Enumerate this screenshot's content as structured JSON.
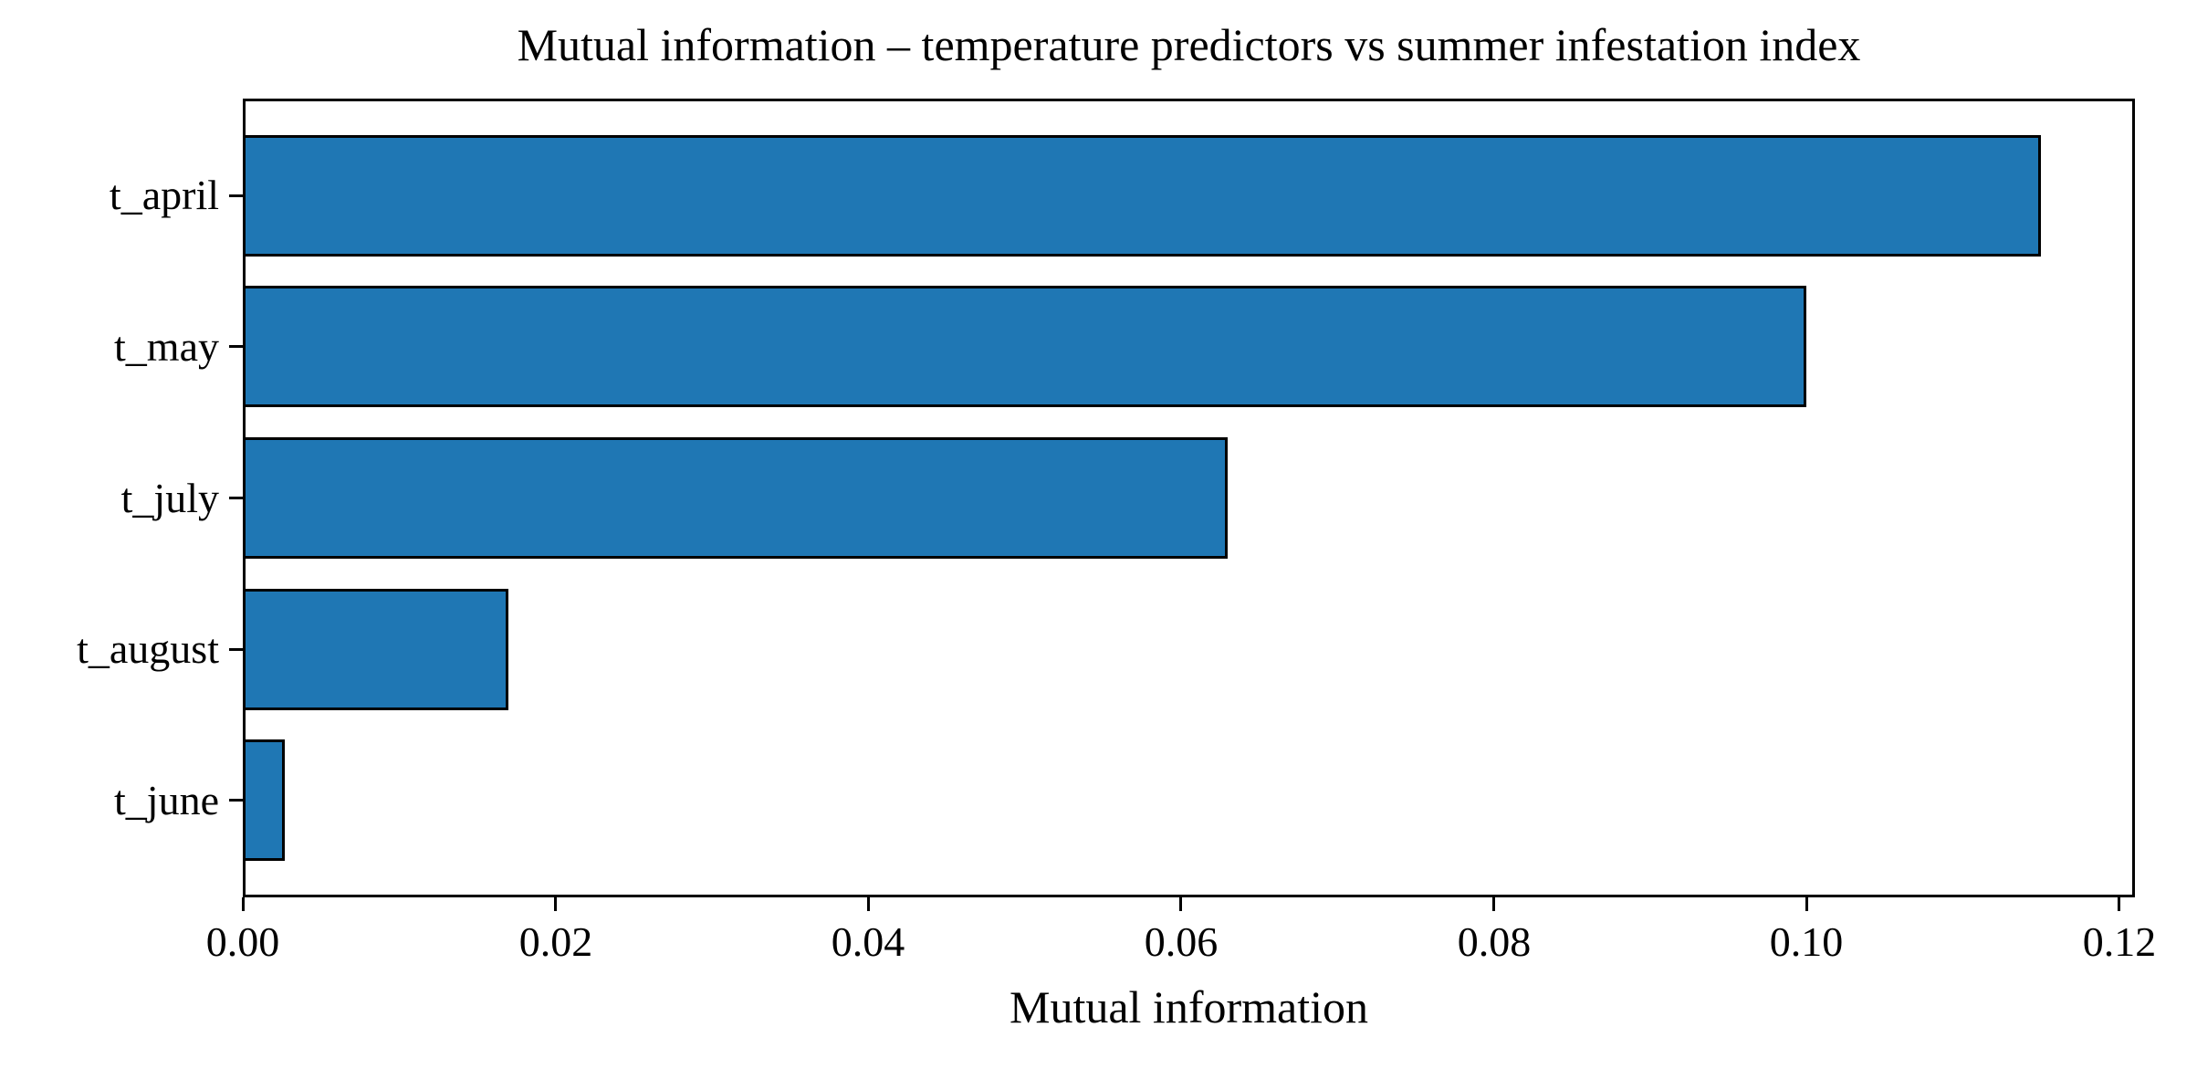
{
  "chart_data": {
    "type": "bar",
    "orientation": "horizontal",
    "title": "Mutual information – temperature predictors vs summer infestation index",
    "xlabel": "Mutual information",
    "ylabel": "",
    "categories": [
      "t_april",
      "t_may",
      "t_july",
      "t_august",
      "t_june"
    ],
    "values": [
      0.115,
      0.1,
      0.063,
      0.017,
      0.0027
    ],
    "xlim": [
      0,
      0.121
    ],
    "xticks": [
      0.0,
      0.02,
      0.04,
      0.06,
      0.08,
      0.1,
      0.12
    ],
    "xtick_labels": [
      "0.00",
      "0.02",
      "0.04",
      "0.06",
      "0.08",
      "0.10",
      "0.12"
    ],
    "grid": false,
    "legend": null,
    "bar_color": "#1f77b4",
    "bar_edge_color": "#000000",
    "frame_color": "#000000",
    "background_color": "#ffffff"
  }
}
